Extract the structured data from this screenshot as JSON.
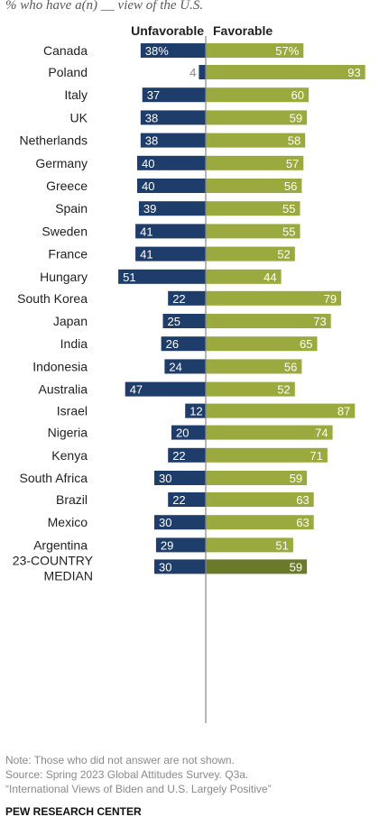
{
  "subtitle": "% who have a(n) __ view of the U.S.",
  "headers": {
    "unfavorable": "Unfavorable",
    "favorable": "Favorable"
  },
  "colors": {
    "unfavorable": "#1f3d6b",
    "favorable": "#9aaa3e",
    "median_favorable": "#6b7a2a",
    "divider": "#888888"
  },
  "chart_data": {
    "type": "bar",
    "orientation": "horizontal-diverging",
    "categories": [
      "Canada",
      "Poland",
      "Italy",
      "UK",
      "Netherlands",
      "Germany",
      "Greece",
      "Spain",
      "Sweden",
      "France",
      "Hungary",
      "South Korea",
      "Japan",
      "India",
      "Indonesia",
      "Australia",
      "Israel",
      "Nigeria",
      "Kenya",
      "South Africa",
      "Brazil",
      "Mexico",
      "Argentina",
      "23-COUNTRY MEDIAN"
    ],
    "series": [
      {
        "name": "Unfavorable",
        "values": [
          38,
          4,
          37,
          38,
          38,
          40,
          40,
          39,
          41,
          41,
          51,
          22,
          25,
          26,
          24,
          47,
          12,
          20,
          22,
          30,
          22,
          30,
          29,
          30
        ]
      },
      {
        "name": "Favorable",
        "values": [
          57,
          93,
          60,
          59,
          58,
          57,
          56,
          55,
          55,
          52,
          44,
          79,
          73,
          65,
          56,
          52,
          87,
          74,
          71,
          59,
          63,
          63,
          51,
          59
        ]
      }
    ],
    "value_labels": {
      "unfavorable": [
        "38%",
        "4",
        "37",
        "38",
        "38",
        "40",
        "40",
        "39",
        "41",
        "41",
        "51",
        "22",
        "25",
        "26",
        "24",
        "47",
        "12",
        "20",
        "22",
        "30",
        "22",
        "30",
        "29",
        "30"
      ],
      "favorable": [
        "57%",
        "93",
        "60",
        "59",
        "58",
        "57",
        "56",
        "55",
        "55",
        "52",
        "44",
        "79",
        "73",
        "65",
        "56",
        "52",
        "87",
        "74",
        "71",
        "59",
        "63",
        "63",
        "51",
        "59"
      ]
    },
    "groups": [
      [
        0
      ],
      [
        1,
        2,
        3,
        4,
        5,
        6,
        7,
        8,
        9,
        10
      ],
      [
        11,
        12,
        13,
        14,
        15
      ],
      [
        16
      ],
      [
        17,
        18,
        19
      ],
      [
        20,
        21,
        22
      ],
      [
        23
      ]
    ]
  },
  "notes": {
    "note": "Note: Those who did not answer are not shown.",
    "source": "Source: Spring 2023 Global Attitudes Survey. Q3a.",
    "report": "“International Views of Biden and U.S. Largely Positive”",
    "brand": "PEW RESEARCH CENTER"
  }
}
